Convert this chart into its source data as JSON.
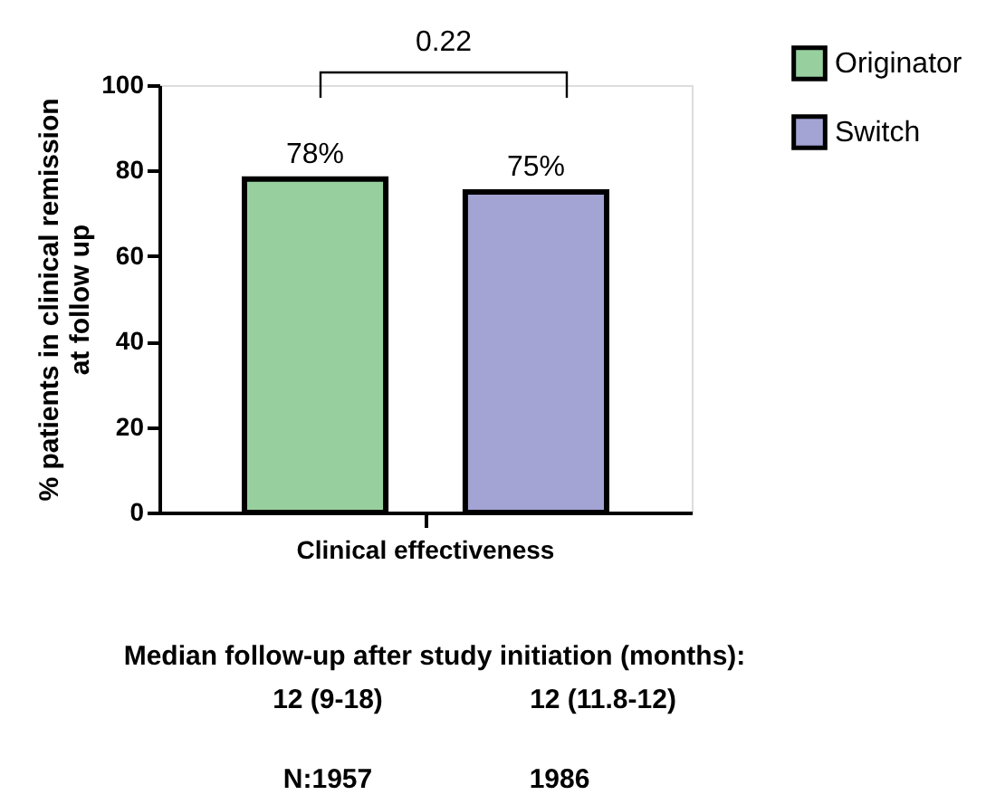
{
  "chart_data": {
    "type": "bar",
    "ylabel": "% patients in clinical remission\nat follow up",
    "categories": [
      "Clinical effectiveness"
    ],
    "series": [
      {
        "name": "Originator",
        "color": "#98cf9e",
        "values": [
          78
        ],
        "value_labels": [
          "78%"
        ]
      },
      {
        "name": "Switch",
        "color": "#a3a3d4",
        "values": [
          75
        ],
        "value_labels": [
          "75%"
        ]
      }
    ],
    "ylim": [
      0,
      100
    ],
    "yticks": [
      0,
      20,
      40,
      60,
      80,
      100
    ],
    "grid": false,
    "legend": "top right",
    "annotations": [
      "0.22",
      "Median follow-up after study initiation (months):",
      "12 (9-18)",
      "12 (11.8-12)",
      "N:1957",
      "1986"
    ]
  }
}
